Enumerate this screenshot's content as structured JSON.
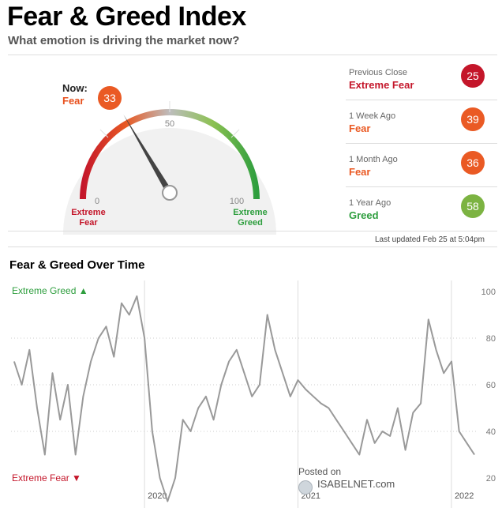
{
  "header": {
    "title": "Fear & Greed Index",
    "subtitle": "What emotion is driving the market now?"
  },
  "gauge": {
    "now_label": "Now:",
    "now_rating": "Fear",
    "now_value": 33,
    "scale_labels": {
      "min": "0",
      "mid": "50",
      "max": "100"
    },
    "left_label": [
      "Extreme",
      "Fear"
    ],
    "right_label": [
      "Extreme",
      "Greed"
    ]
  },
  "previous": [
    {
      "label": "Previous Close",
      "rating": "Extreme Fear",
      "value": "25",
      "color": "#c4162a"
    },
    {
      "label": "1 Week Ago",
      "rating": "Fear",
      "value": "39",
      "color": "#ea5a24"
    },
    {
      "label": "1 Month Ago",
      "rating": "Fear",
      "value": "36",
      "color": "#ea5a24"
    },
    {
      "label": "1 Year Ago",
      "rating": "Greed",
      "value": "58",
      "color": "#7cb342"
    }
  ],
  "updated": "Last updated Feb 25 at 5:04pm",
  "over_time": {
    "title": "Fear & Greed Over Time",
    "top_label": "Extreme Greed",
    "bottom_label": "Extreme Fear"
  },
  "watermark": {
    "posted": "Posted on",
    "brand": "ISABELNET.com"
  },
  "colors": {
    "extreme_fear": "#c4162a",
    "fear": "#ea5a24",
    "greed": "#2e9e3e",
    "line": "#999999"
  },
  "chart_data": {
    "type": "line",
    "title": "Fear & Greed Over Time",
    "x_ticks": [
      {
        "label": "2020",
        "x": 2020.0
      },
      {
        "label": "2021",
        "x": 2021.0
      },
      {
        "label": "2022",
        "x": 2022.0
      }
    ],
    "ylim": [
      20,
      100
    ],
    "y_ticks": [
      20,
      40,
      60,
      80,
      100
    ],
    "grid": "dotted horizontal",
    "series": [
      {
        "x": [
          2019.15,
          2019.2,
          2019.25,
          2019.3,
          2019.35,
          2019.4,
          2019.45,
          2019.5,
          2019.55,
          2019.6,
          2019.65,
          2019.7,
          2019.75,
          2019.8,
          2019.85,
          2019.9,
          2019.95,
          2020.0,
          2020.05,
          2020.1,
          2020.15,
          2020.2,
          2020.25,
          2020.3,
          2020.35,
          2020.4,
          2020.45,
          2020.5,
          2020.55,
          2020.6,
          2020.65,
          2020.7,
          2020.75,
          2020.8,
          2020.85,
          2020.9,
          2020.95,
          2021.0,
          2021.05,
          2021.1,
          2021.15,
          2021.2,
          2021.25,
          2021.3,
          2021.35,
          2021.4,
          2021.45,
          2021.5,
          2021.55,
          2021.6,
          2021.65,
          2021.7,
          2021.75,
          2021.8,
          2021.85,
          2021.9,
          2021.95,
          2022.0,
          2022.05,
          2022.1,
          2022.15
        ],
        "y": [
          70,
          60,
          75,
          50,
          30,
          65,
          45,
          60,
          30,
          55,
          70,
          80,
          85,
          72,
          95,
          90,
          98,
          80,
          40,
          20,
          10,
          20,
          45,
          40,
          50,
          55,
          45,
          60,
          70,
          75,
          65,
          55,
          60,
          90,
          75,
          65,
          55,
          62,
          58,
          55,
          52,
          50,
          45,
          40,
          35,
          30,
          45,
          35,
          40,
          38,
          50,
          32,
          48,
          52,
          88,
          75,
          65,
          70,
          40,
          35,
          30
        ],
        "name": ""
      }
    ]
  }
}
